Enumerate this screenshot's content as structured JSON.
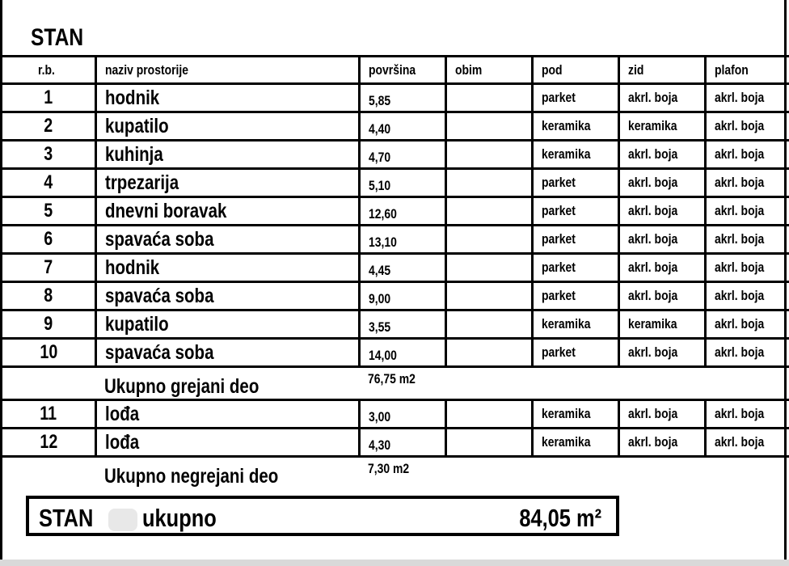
{
  "title": "STAN",
  "headers": [
    "r.b.",
    "naziv prostorije",
    "površina",
    "obim",
    "pod",
    "zid",
    "plafon"
  ],
  "heated_rooms": [
    {
      "rb": "1",
      "name": "hodnik",
      "area": "5,85",
      "obim": "",
      "pod": "parket",
      "zid": "akrl. boja",
      "plafon": "akrl. boja"
    },
    {
      "rb": "2",
      "name": "kupatilo",
      "area": "4,40",
      "obim": "",
      "pod": "keramika",
      "zid": "keramika",
      "plafon": "akrl. boja"
    },
    {
      "rb": "3",
      "name": "kuhinja",
      "area": "4,70",
      "obim": "",
      "pod": "keramika",
      "zid": "akrl. boja",
      "plafon": "akrl. boja"
    },
    {
      "rb": "4",
      "name": "trpezarija",
      "area": "5,10",
      "obim": "",
      "pod": "parket",
      "zid": "akrl. boja",
      "plafon": "akrl. boja"
    },
    {
      "rb": "5",
      "name": "dnevni boravak",
      "area": "12,60",
      "obim": "",
      "pod": "parket",
      "zid": "akrl. boja",
      "plafon": "akrl. boja"
    },
    {
      "rb": "6",
      "name": "spavaća soba",
      "area": "13,10",
      "obim": "",
      "pod": "parket",
      "zid": "akrl. boja",
      "plafon": "akrl. boja"
    },
    {
      "rb": "7",
      "name": "hodnik",
      "area": "4,45",
      "obim": "",
      "pod": "parket",
      "zid": "akrl. boja",
      "plafon": "akrl. boja"
    },
    {
      "rb": "8",
      "name": "spavaća soba",
      "area": "9,00",
      "obim": "",
      "pod": "parket",
      "zid": "akrl. boja",
      "plafon": "akrl. boja"
    },
    {
      "rb": "9",
      "name": "kupatilo",
      "area": "3,55",
      "obim": "",
      "pod": "keramika",
      "zid": "keramika",
      "plafon": "akrl. boja"
    },
    {
      "rb": "10",
      "name": "spavaća soba",
      "area": "14,00",
      "obim": "",
      "pod": "parket",
      "zid": "akrl. boja",
      "plafon": "akrl. boja"
    }
  ],
  "heated_total": {
    "label": "Ukupno grejani deo",
    "value": "76,75 m2"
  },
  "unheated_rooms": [
    {
      "rb": "11",
      "name": "lođa",
      "area": "3,00",
      "obim": "",
      "pod": "keramika",
      "zid": "akrl. boja",
      "plafon": "akrl. boja"
    },
    {
      "rb": "12",
      "name": "lođa",
      "area": "4,30",
      "obim": "",
      "pod": "keramika",
      "zid": "akrl. boja",
      "plafon": "akrl. boja"
    }
  ],
  "unheated_total": {
    "label": "Ukupno negrejani deo",
    "value": "7,30 m2"
  },
  "grand_total": {
    "label": "STAN",
    "suffix": "ukupno",
    "value": "84,05 m²"
  }
}
